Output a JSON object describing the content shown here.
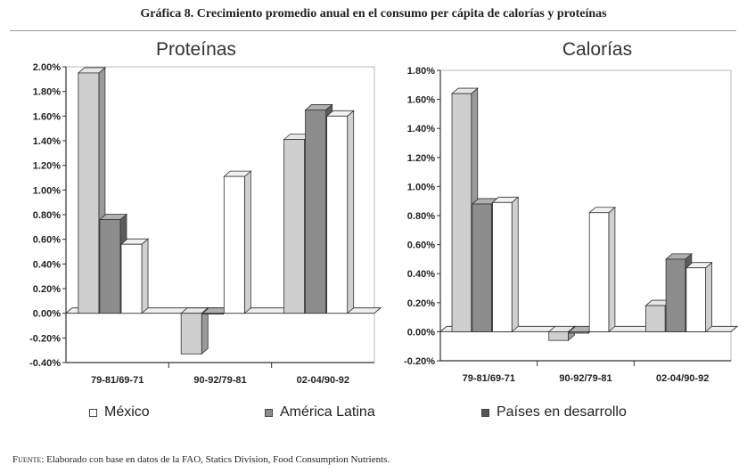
{
  "title": "Gráfica 8. Crecimiento promedio anual en el consumo per cápita de calorías y proteínas",
  "source": {
    "prefix": "Fuente",
    "text": ": Elaborado con base en datos de la FAO, Statics Division, Food Consumption Nutrients."
  },
  "legend": [
    {
      "name": "México",
      "color": "#ffffff"
    },
    {
      "name": "América Latina",
      "color": "#8c8c8c"
    },
    {
      "name": "Países en desarrollo",
      "color": "#555555"
    }
  ],
  "colors": {
    "mexico": "#ffffff",
    "america_latina": "#8c8c8c",
    "paises_desarrollo": "#555555",
    "light": "#cfcfcf",
    "mid": "#8c8c8c",
    "dark": "#5a5a5a"
  },
  "chart_data": [
    {
      "type": "bar",
      "title": "Proteínas",
      "categories": [
        "79-81/69-71",
        "90-92/79-81",
        "02-04/90-92"
      ],
      "ylim": [
        -0.4,
        2.0
      ],
      "yticks": [
        "2.00%",
        "1.80%",
        "1.60%",
        "1.40%",
        "1.20%",
        "1.00%",
        "0.80%",
        "0.60%",
        "0.40%",
        "0.20%",
        "0.00%",
        "-0.20%",
        "-0.40%"
      ],
      "ytick_values": [
        2.0,
        1.8,
        1.6,
        1.4,
        1.2,
        1.0,
        0.8,
        0.6,
        0.4,
        0.2,
        0.0,
        -0.2,
        -0.4
      ],
      "series": [
        {
          "values": [
            1.95,
            -0.33,
            1.41
          ],
          "shade": "light"
        },
        {
          "values": [
            0.76,
            0.0,
            1.65
          ],
          "shade": "mid"
        },
        {
          "values": [
            0.56,
            1.11,
            1.6
          ],
          "shade": "white"
        }
      ]
    },
    {
      "type": "bar",
      "title": "Calorías",
      "categories": [
        "79-81/69-71",
        "90-92/79-81",
        "02-04/90-92"
      ],
      "ylim": [
        -0.2,
        1.8
      ],
      "yticks": [
        "1.80%",
        "1.60%",
        "1.40%",
        "1.20%",
        "1.00%",
        "0.80%",
        "0.60%",
        "0.40%",
        "0.20%",
        "0.00%",
        "-0.20%"
      ],
      "ytick_values": [
        1.8,
        1.6,
        1.4,
        1.2,
        1.0,
        0.8,
        0.6,
        0.4,
        0.2,
        0.0,
        -0.2
      ],
      "series": [
        {
          "values": [
            1.64,
            -0.06,
            0.18
          ],
          "shade": "light"
        },
        {
          "values": [
            0.88,
            -0.01,
            0.5
          ],
          "shade": "mid"
        },
        {
          "values": [
            0.89,
            0.82,
            0.44
          ],
          "shade": "white"
        }
      ]
    }
  ]
}
